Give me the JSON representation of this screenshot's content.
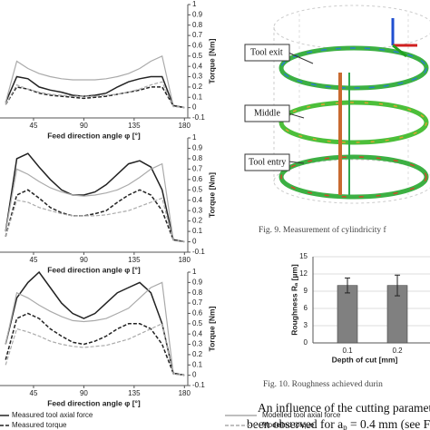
{
  "chart_data": [
    {
      "type": "line",
      "x": [
        20,
        30,
        40,
        50,
        60,
        70,
        80,
        90,
        100,
        110,
        120,
        130,
        140,
        150,
        160,
        170,
        180
      ],
      "xlim": [
        15,
        183
      ],
      "xticks": [
        45,
        90,
        135,
        180
      ],
      "x_label": "Feed direction angle φ [°]",
      "ylim": [
        -0.1,
        1
      ],
      "yticks": [
        1,
        0.9,
        0.8,
        0.7,
        0.6,
        0.5,
        0.4,
        0.3,
        0.2,
        0.1,
        0,
        -0.1
      ],
      "y_label": "Torque [Nm]",
      "y_axis_side": "right",
      "series": [
        {
          "color": "#222222",
          "dash": "solid",
          "values": [
            0.05,
            0.3,
            0.28,
            0.2,
            0.17,
            0.15,
            0.12,
            0.11,
            0.12,
            0.14,
            0.2,
            0.25,
            0.28,
            0.3,
            0.3,
            0.02,
            0
          ]
        },
        {
          "color": "#aaaaaa",
          "dash": "solid",
          "values": [
            0.05,
            0.45,
            0.38,
            0.33,
            0.3,
            0.28,
            0.27,
            0.27,
            0.27,
            0.28,
            0.3,
            0.33,
            0.38,
            0.45,
            0.5,
            0.02,
            0
          ]
        },
        {
          "color": "#222222",
          "dash": "dashed",
          "values": [
            0.03,
            0.2,
            0.18,
            0.14,
            0.12,
            0.11,
            0.1,
            0.09,
            0.1,
            0.11,
            0.13,
            0.15,
            0.17,
            0.2,
            0.2,
            0.02,
            0
          ]
        },
        {
          "color": "#aaaaaa",
          "dash": "dashed",
          "values": [
            0.03,
            0.22,
            0.18,
            0.15,
            0.13,
            0.12,
            0.11,
            0.11,
            0.11,
            0.12,
            0.13,
            0.15,
            0.18,
            0.22,
            0.25,
            0.01,
            0
          ]
        }
      ]
    },
    {
      "type": "line",
      "x": [
        20,
        30,
        40,
        50,
        60,
        70,
        80,
        90,
        100,
        110,
        120,
        130,
        140,
        150,
        160,
        170,
        180
      ],
      "xlim": [
        15,
        183
      ],
      "xticks": [
        45,
        90,
        135,
        180
      ],
      "x_label": "Feed direction angle φ [°]",
      "ylim": [
        -0.1,
        1
      ],
      "yticks": [
        1,
        0.9,
        0.8,
        0.7,
        0.6,
        0.5,
        0.4,
        0.3,
        0.2,
        0.1,
        0,
        -0.1
      ],
      "y_label": "Torque [Nm]",
      "y_axis_side": "right",
      "series": [
        {
          "color": "#222222",
          "dash": "solid",
          "values": [
            0.1,
            0.8,
            0.85,
            0.72,
            0.6,
            0.5,
            0.45,
            0.45,
            0.48,
            0.55,
            0.65,
            0.75,
            0.78,
            0.72,
            0.5,
            0.02,
            0
          ]
        },
        {
          "color": "#aaaaaa",
          "dash": "solid",
          "values": [
            0.1,
            0.7,
            0.65,
            0.58,
            0.52,
            0.48,
            0.45,
            0.44,
            0.45,
            0.47,
            0.5,
            0.55,
            0.62,
            0.7,
            0.75,
            0.02,
            0
          ]
        },
        {
          "color": "#222222",
          "dash": "dashed",
          "values": [
            0.05,
            0.45,
            0.5,
            0.42,
            0.33,
            0.28,
            0.25,
            0.25,
            0.27,
            0.3,
            0.38,
            0.45,
            0.5,
            0.45,
            0.3,
            0.02,
            0
          ]
        },
        {
          "color": "#aaaaaa",
          "dash": "dashed",
          "values": [
            0.05,
            0.4,
            0.38,
            0.33,
            0.3,
            0.27,
            0.25,
            0.25,
            0.25,
            0.26,
            0.28,
            0.3,
            0.34,
            0.38,
            0.42,
            0.01,
            0
          ]
        }
      ]
    },
    {
      "type": "line",
      "x": [
        20,
        30,
        40,
        50,
        60,
        70,
        80,
        90,
        100,
        110,
        120,
        130,
        140,
        150,
        160,
        170,
        180
      ],
      "xlim": [
        15,
        183
      ],
      "xticks": [
        45,
        90,
        135,
        180
      ],
      "x_label": "Feed direction angle φ [°]",
      "ylim": [
        -0.1,
        1
      ],
      "yticks": [
        1,
        0.9,
        0.8,
        0.7,
        0.6,
        0.5,
        0.4,
        0.3,
        0.2,
        0.1,
        0,
        -0.1
      ],
      "y_label": "Torque [Nm]",
      "y_axis_side": "right",
      "series": [
        {
          "name": "Measured tool axial force",
          "color": "#222222",
          "dash": "solid",
          "values": [
            0.3,
            0.75,
            0.9,
            1.0,
            0.85,
            0.7,
            0.6,
            0.55,
            0.6,
            0.7,
            0.8,
            0.85,
            0.9,
            0.8,
            0.5,
            0.02,
            0
          ]
        },
        {
          "name": "Modelled tool axial force",
          "color": "#aaaaaa",
          "dash": "solid",
          "values": [
            0.3,
            0.8,
            0.75,
            0.68,
            0.62,
            0.57,
            0.53,
            0.52,
            0.53,
            0.55,
            0.6,
            0.65,
            0.75,
            0.85,
            0.9,
            0.02,
            0
          ]
        },
        {
          "name": "Measured torque",
          "color": "#222222",
          "dash": "dashed",
          "values": [
            0.15,
            0.55,
            0.6,
            0.55,
            0.45,
            0.38,
            0.32,
            0.3,
            0.33,
            0.38,
            0.45,
            0.5,
            0.5,
            0.45,
            0.3,
            0.02,
            0
          ]
        },
        {
          "name": "Modelled torque",
          "color": "#aaaaaa",
          "dash": "dashed",
          "values": [
            0.1,
            0.45,
            0.42,
            0.38,
            0.33,
            0.3,
            0.28,
            0.27,
            0.28,
            0.29,
            0.32,
            0.35,
            0.4,
            0.45,
            0.5,
            0.01,
            0
          ]
        }
      ]
    },
    {
      "type": "bar",
      "categories": [
        "0.1",
        "0.2"
      ],
      "values": [
        10,
        10
      ],
      "errors": [
        1.3,
        1.8
      ],
      "color": "#808080",
      "ylim": [
        0,
        15
      ],
      "yticks": [
        0,
        3,
        6,
        9,
        12,
        15
      ],
      "grid": true,
      "y_label": "Roughness Rₐ [µm]",
      "x_label": "Depth of cut [mm]"
    }
  ],
  "figure9": {
    "labels": [
      "Tool exit",
      "Middle",
      "Tool entry"
    ],
    "caption": "Fig. 9. Measurement of cylindricity f"
  },
  "figure10": {
    "caption": "Fig. 10. Roughness achieved durin"
  },
  "body_text": {
    "line1": "An influence of the cutting paramet",
    "line2_before": "been observed for a",
    "line2_sub": "p",
    "line2_after": " = 0.4 mm (see Fi"
  }
}
